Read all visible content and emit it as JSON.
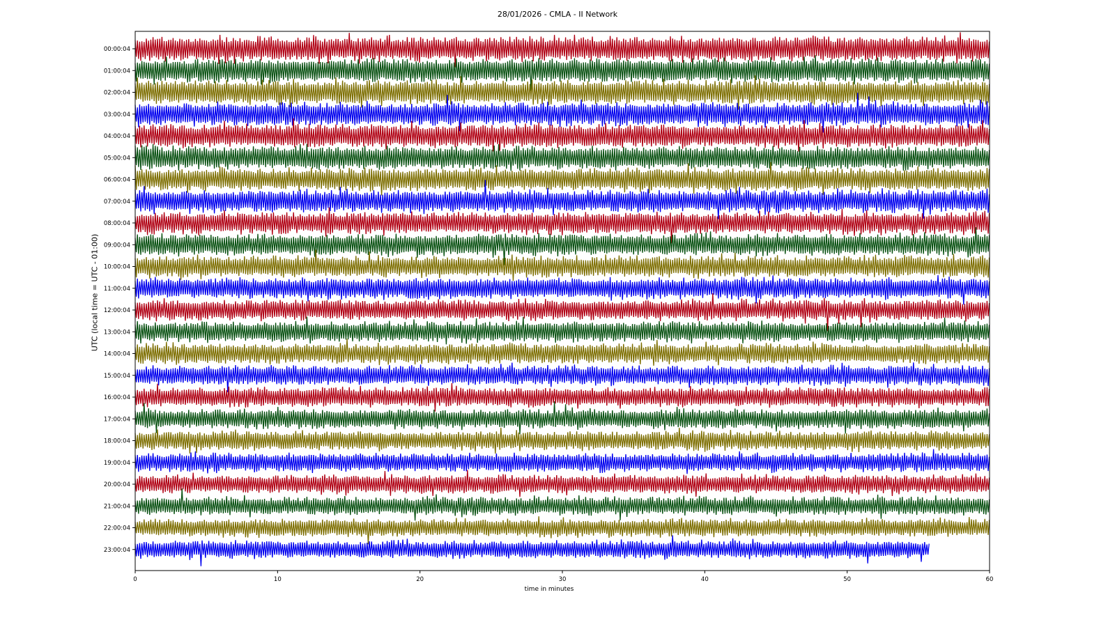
{
  "chart_data": {
    "type": "line",
    "title": "28/01/2026 - CMLA - II Network",
    "xlabel": "time in minutes",
    "ylabel": "UTC (local time = UTC - 01:00)",
    "xlim": [
      0,
      60
    ],
    "x_ticks": [
      "0",
      "10",
      "20",
      "30",
      "40",
      "50",
      "60"
    ],
    "row_labels": [
      "00:00:04",
      "01:00:04",
      "02:00:04",
      "03:00:04",
      "04:00:04",
      "05:00:04",
      "06:00:04",
      "07:00:04",
      "08:00:04",
      "09:00:04",
      "10:00:04",
      "11:00:04",
      "12:00:04",
      "13:00:04",
      "14:00:04",
      "15:00:04",
      "16:00:04",
      "17:00:04",
      "18:00:04",
      "19:00:04",
      "20:00:04",
      "21:00:04",
      "22:00:04",
      "23:00:04"
    ],
    "row_colors": [
      "#b00013",
      "#0a5213",
      "#7d6e00",
      "#0000ee"
    ],
    "last_row_end_minutes": 55.8,
    "grid": false,
    "legend": "none"
  }
}
